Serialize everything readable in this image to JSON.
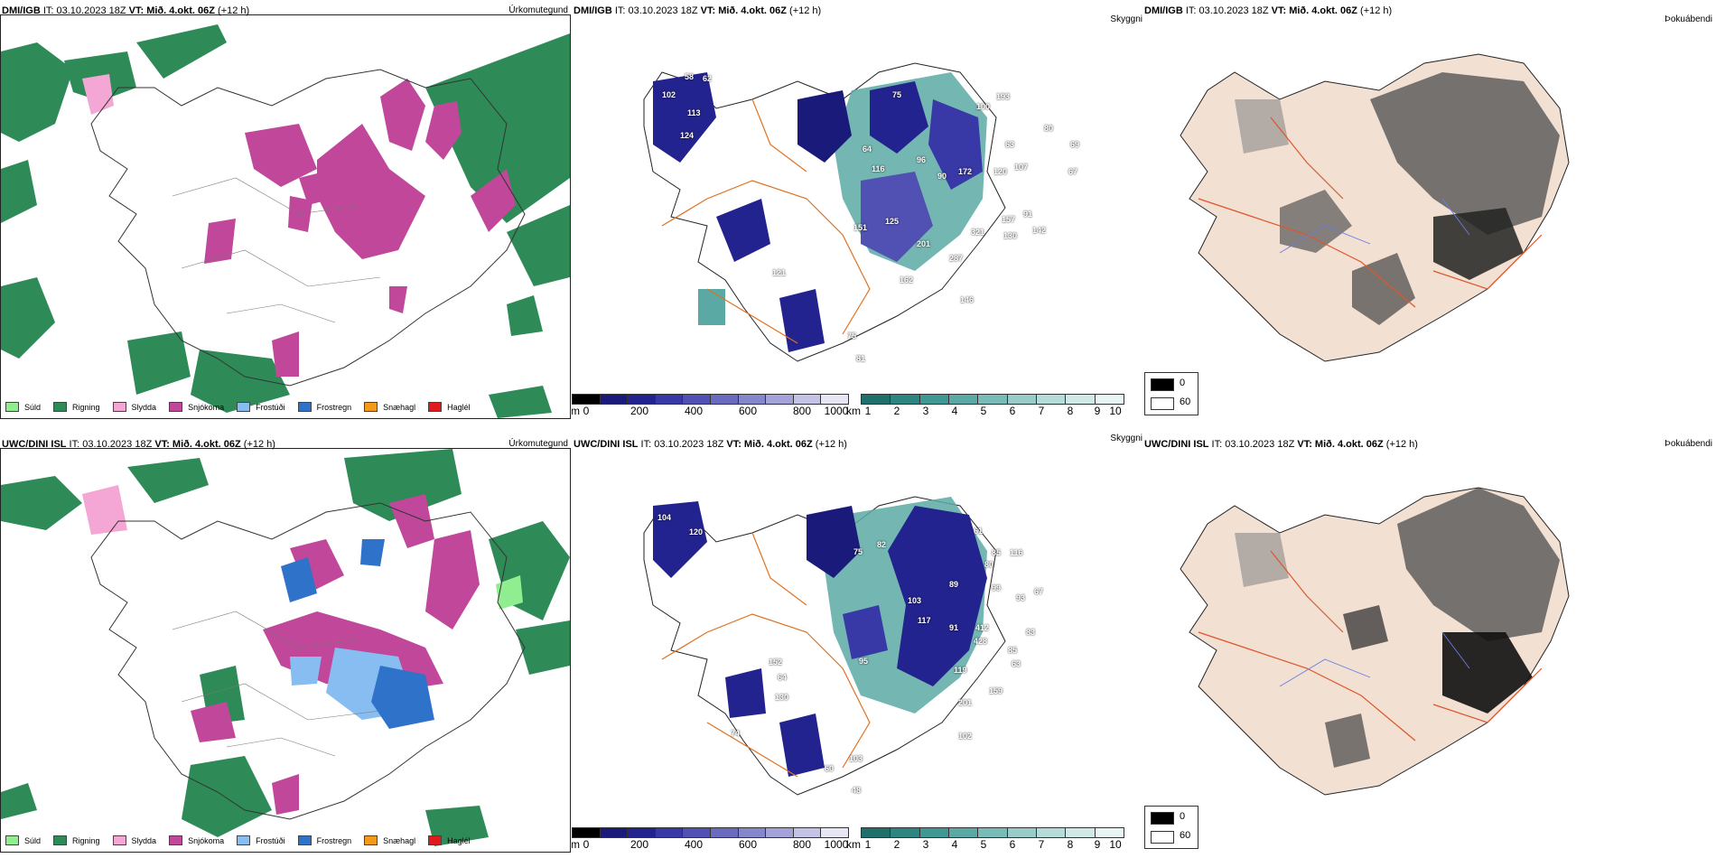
{
  "rows": [
    {
      "model": "DMI/IGB",
      "precip": {
        "title": "Úrkomutegund",
        "header_model": "DMI/IGB",
        "header_it": " IT: 03.10.2023 18Z ",
        "header_vt": "VT: Mið. 4.okt. 06Z",
        "header_tail": " (+12 h)"
      },
      "visibility": {
        "title": "Skyggni",
        "header_model": "DMI/IGB",
        "header_it": " IT: 03.10.2023 18Z ",
        "header_vt": "VT: Mið. 4.okt. 06Z",
        "header_tail": " (+12 h)",
        "labels": [
          "102",
          "58",
          "62",
          "113",
          "124",
          "75",
          "100",
          "193",
          "80",
          "69",
          "64",
          "116",
          "96",
          "172",
          "120",
          "107",
          "90",
          "63",
          "67",
          "151",
          "125",
          "201",
          "321",
          "130",
          "91",
          "157",
          "142",
          "287",
          "162",
          "146",
          "121",
          "81",
          "75"
        ]
      },
      "fog": {
        "title": "Þokuábendi",
        "header_model": "DMI/IGB",
        "header_it": " IT: 03.10.2023 18Z ",
        "header_vt": "VT: Mið. 4.okt. 06Z",
        "header_tail": " (+12 h)"
      }
    },
    {
      "model": "UWC/DINI ISL",
      "precip": {
        "title": "Úrkomutegund",
        "header_model": "UWC/DINI ISL",
        "header_it": " IT: 03.10.2023 18Z ",
        "header_vt": "VT: Mið. 4.okt. 06Z",
        "header_tail": " (+12 h)"
      },
      "visibility": {
        "title": "Skyggni",
        "header_model": "UWC/DINI ISL",
        "header_it": " IT: 03.10.2023 18Z ",
        "header_vt": "VT: Mið. 4.okt. 06Z",
        "header_tail": " (+12 h)",
        "labels": [
          "104",
          "120",
          "75",
          "82",
          "61",
          "85",
          "116",
          "80",
          "89",
          "99",
          "103",
          "117",
          "91",
          "412",
          "428",
          "93",
          "67",
          "83",
          "85",
          "63",
          "119",
          "152",
          "95",
          "201",
          "159",
          "130",
          "64",
          "103",
          "60",
          "48",
          "102",
          "74"
        ]
      },
      "fog": {
        "title": "Þokuábendi",
        "header_model": "UWC/DINI ISL",
        "header_it": " IT: 03.10.2023 18Z ",
        "header_vt": "VT: Mið. 4.okt. 06Z",
        "header_tail": " (+12 h)"
      }
    }
  ],
  "precip_legend": [
    {
      "label": "Súld",
      "color": "#90ee90"
    },
    {
      "label": "Rigning",
      "color": "#2e8b57"
    },
    {
      "label": "Slydda",
      "color": "#f4a6d4"
    },
    {
      "label": "Snjókoma",
      "color": "#c0479a"
    },
    {
      "label": "Frostúði",
      "color": "#87bdf0"
    },
    {
      "label": "Frostregn",
      "color": "#2f72c9"
    },
    {
      "label": "Snæhagl",
      "color": "#f39a1a"
    },
    {
      "label": "Haglél",
      "color": "#e11b1b"
    }
  ],
  "vis_scale_m": {
    "unit": "m",
    "ticks": [
      "0",
      "200",
      "400",
      "600",
      "800",
      "1000"
    ],
    "colors": [
      "#000000",
      "#1a1a7a",
      "#23238f",
      "#3838a6",
      "#5151b3",
      "#6a6abf",
      "#8686cc",
      "#a3a3d9",
      "#c3c3e6",
      "#e6e6f4"
    ]
  },
  "vis_scale_km": {
    "unit": "km",
    "ticks": [
      "1",
      "2",
      "3",
      "4",
      "5",
      "6",
      "7",
      "8",
      "9",
      "10"
    ],
    "colors": [
      "#1f6f6a",
      "#2d8582",
      "#3f9893",
      "#5aa9a4",
      "#79bbb7",
      "#99ccc9",
      "#b6dcd9",
      "#d0e9e7",
      "#e9f5f4"
    ]
  },
  "fog_legend": [
    {
      "label": "0",
      "color": "#000000"
    },
    {
      "label": "60",
      "color": "#ffffff"
    }
  ]
}
